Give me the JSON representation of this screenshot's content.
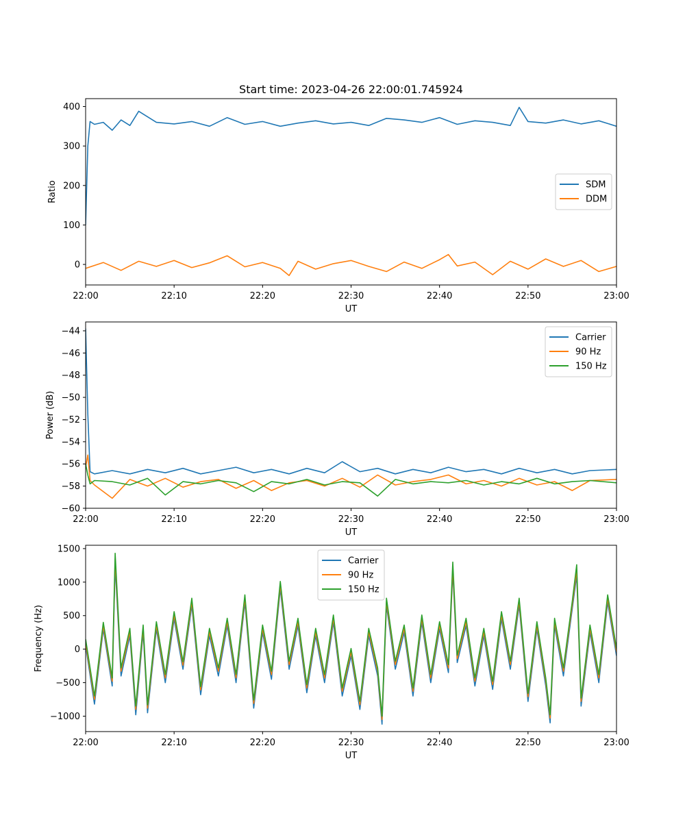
{
  "chart_data": [
    {
      "type": "line",
      "title": "Start time: 2023-04-26 22:00:01.745924",
      "xlabel": "UT",
      "ylabel": "Ratio",
      "xlim": [
        "22:00",
        "23:00"
      ],
      "ylim": [
        -52,
        420
      ],
      "xticks": [
        "22:00",
        "22:10",
        "22:20",
        "22:30",
        "22:40",
        "22:50",
        "23:00"
      ],
      "yticks": [
        0,
        100,
        200,
        300,
        400
      ],
      "grid": false,
      "legend_position": "center-right",
      "series": [
        {
          "name": "SDM",
          "color": "#1f77b4",
          "x": [
            "22:00",
            "22:00:15",
            "22:00:30",
            "22:01",
            "22:02",
            "22:03",
            "22:04",
            "22:05",
            "22:06",
            "22:08",
            "22:10",
            "22:12",
            "22:14",
            "22:16",
            "22:18",
            "22:20",
            "22:22",
            "22:24",
            "22:26",
            "22:28",
            "22:30",
            "22:32",
            "22:34",
            "22:36",
            "22:38",
            "22:40",
            "22:42",
            "22:44",
            "22:46",
            "22:48",
            "22:49",
            "22:50",
            "22:52",
            "22:54",
            "22:56",
            "22:58",
            "23:00"
          ],
          "values": [
            100,
            300,
            362,
            355,
            360,
            340,
            366,
            352,
            388,
            360,
            356,
            362,
            350,
            372,
            355,
            362,
            350,
            358,
            364,
            356,
            360,
            352,
            370,
            366,
            360,
            372,
            355,
            364,
            360,
            352,
            398,
            362,
            358,
            366,
            356,
            364,
            350
          ]
        },
        {
          "name": "DDM",
          "color": "#ff7f0e",
          "x": [
            "22:00",
            "22:02",
            "22:04",
            "22:06",
            "22:08",
            "22:10",
            "22:12",
            "22:14",
            "22:16",
            "22:18",
            "22:20",
            "22:22",
            "22:23",
            "22:24",
            "22:26",
            "22:28",
            "22:30",
            "22:32",
            "22:34",
            "22:36",
            "22:38",
            "22:40",
            "22:41",
            "22:42",
            "22:44",
            "22:46",
            "22:48",
            "22:50",
            "22:52",
            "22:54",
            "22:56",
            "22:58",
            "23:00"
          ],
          "values": [
            -10,
            5,
            -15,
            8,
            -5,
            10,
            -8,
            4,
            22,
            -6,
            5,
            -10,
            -28,
            8,
            -12,
            2,
            10,
            -5,
            -18,
            6,
            -10,
            12,
            25,
            -4,
            6,
            -26,
            8,
            -12,
            14,
            -5,
            10,
            -18,
            -5
          ]
        }
      ]
    },
    {
      "type": "line",
      "title": "",
      "xlabel": "UT",
      "ylabel": "Power (dB)",
      "xlim": [
        "22:00",
        "23:00"
      ],
      "ylim": [
        -60,
        -43.2
      ],
      "xticks": [
        "22:00",
        "22:10",
        "22:20",
        "22:30",
        "22:40",
        "22:50",
        "23:00"
      ],
      "yticks": [
        -60,
        -58,
        -56,
        -54,
        -52,
        -50,
        -48,
        -46,
        -44
      ],
      "grid": false,
      "legend_position": "top-right",
      "series": [
        {
          "name": "Carrier",
          "color": "#1f77b4",
          "x": [
            "22:00",
            "22:00:15",
            "22:00:30",
            "22:01",
            "22:03",
            "22:05",
            "22:07",
            "22:09",
            "22:11",
            "22:13",
            "22:15",
            "22:17",
            "22:19",
            "22:21",
            "22:23",
            "22:25",
            "22:27",
            "22:29",
            "22:31",
            "22:33",
            "22:35",
            "22:37",
            "22:39",
            "22:41",
            "22:43",
            "22:45",
            "22:47",
            "22:49",
            "22:51",
            "22:53",
            "22:55",
            "22:57",
            "23:00"
          ],
          "values": [
            -43.8,
            -51.5,
            -56.7,
            -56.9,
            -56.6,
            -56.9,
            -56.5,
            -56.8,
            -56.4,
            -56.9,
            -56.6,
            -56.3,
            -56.8,
            -56.5,
            -56.9,
            -56.4,
            -56.8,
            -55.8,
            -56.7,
            -56.4,
            -56.9,
            -56.5,
            -56.8,
            -56.3,
            -56.7,
            -56.5,
            -56.9,
            -56.4,
            -56.8,
            -56.5,
            -56.9,
            -56.6,
            -56.5
          ]
        },
        {
          "name": "90 Hz",
          "color": "#ff7f0e",
          "x": [
            "22:00",
            "22:00:15",
            "22:00:30",
            "22:01",
            "22:03",
            "22:05",
            "22:07",
            "22:09",
            "22:11",
            "22:13",
            "22:15",
            "22:17",
            "22:19",
            "22:21",
            "22:23",
            "22:25",
            "22:27",
            "22:29",
            "22:31",
            "22:33",
            "22:35",
            "22:37",
            "22:39",
            "22:41",
            "22:43",
            "22:45",
            "22:47",
            "22:49",
            "22:51",
            "22:53",
            "22:55",
            "22:57",
            "23:00"
          ],
          "values": [
            -56.3,
            -55.2,
            -57.5,
            -57.9,
            -59.1,
            -57.4,
            -58.0,
            -57.3,
            -58.1,
            -57.6,
            -57.4,
            -58.2,
            -57.5,
            -58.4,
            -57.7,
            -57.5,
            -58.0,
            -57.3,
            -58.1,
            -57.0,
            -57.9,
            -57.6,
            -57.4,
            -57.0,
            -57.8,
            -57.5,
            -58.0,
            -57.3,
            -57.9,
            -57.6,
            -58.4,
            -57.5,
            -57.4
          ]
        },
        {
          "name": "150 Hz",
          "color": "#2ca02c",
          "x": [
            "22:00",
            "22:00:15",
            "22:00:30",
            "22:01",
            "22:03",
            "22:05",
            "22:07",
            "22:09",
            "22:11",
            "22:13",
            "22:15",
            "22:17",
            "22:19",
            "22:21",
            "22:23",
            "22:25",
            "22:27",
            "22:29",
            "22:31",
            "22:33",
            "22:35",
            "22:37",
            "22:39",
            "22:41",
            "22:43",
            "22:45",
            "22:47",
            "22:49",
            "22:51",
            "22:53",
            "22:55",
            "22:57",
            "23:00"
          ],
          "values": [
            -56.0,
            -57.0,
            -57.8,
            -57.5,
            -57.6,
            -57.9,
            -57.3,
            -58.8,
            -57.6,
            -57.8,
            -57.5,
            -57.7,
            -58.5,
            -57.6,
            -57.8,
            -57.4,
            -57.9,
            -57.6,
            -57.7,
            -58.9,
            -57.4,
            -57.8,
            -57.6,
            -57.7,
            -57.5,
            -57.9,
            -57.6,
            -57.8,
            -57.3,
            -57.8,
            -57.6,
            -57.5,
            -57.7
          ]
        }
      ]
    },
    {
      "type": "line",
      "title": "",
      "xlabel": "UT",
      "ylabel": "Frequency (Hz)",
      "xlim": [
        "22:00",
        "23:00"
      ],
      "ylim": [
        -1230,
        1550
      ],
      "xticks": [
        "22:00",
        "22:10",
        "22:20",
        "22:30",
        "22:40",
        "22:50",
        "23:00"
      ],
      "yticks": [
        -1000,
        -500,
        0,
        500,
        1000,
        1500
      ],
      "grid": false,
      "legend_position": "top-center",
      "series": [
        {
          "name": "Carrier",
          "color": "#1f77b4",
          "x": [
            "22:00",
            "22:01",
            "22:02",
            "22:03",
            "22:03:20",
            "22:04",
            "22:05",
            "22:05:40",
            "22:06:30",
            "22:07",
            "22:08",
            "22:09",
            "22:10",
            "22:11",
            "22:12",
            "22:13",
            "22:14",
            "22:15",
            "22:16",
            "22:17",
            "22:18",
            "22:19",
            "22:20",
            "22:21",
            "22:22",
            "22:23",
            "22:24",
            "22:25",
            "22:26",
            "22:27",
            "22:28",
            "22:29",
            "22:30",
            "22:31",
            "22:32",
            "22:33",
            "22:33:30",
            "22:34",
            "22:35",
            "22:36",
            "22:37",
            "22:38",
            "22:39",
            "22:40",
            "22:41",
            "22:41:30",
            "22:42",
            "22:43",
            "22:44",
            "22:45",
            "22:46",
            "22:47",
            "22:48",
            "22:49",
            "22:50",
            "22:51",
            "22:52",
            "22:52:30",
            "22:53",
            "22:54",
            "22:55",
            "22:55:30",
            "22:56",
            "22:57",
            "22:58",
            "22:59",
            "23:00"
          ],
          "values": [
            50,
            -820,
            300,
            -550,
            1250,
            -400,
            200,
            -980,
            250,
            -950,
            300,
            -500,
            450,
            -300,
            650,
            -680,
            200,
            -400,
            350,
            -500,
            700,
            -880,
            250,
            -450,
            900,
            -300,
            350,
            -650,
            200,
            -500,
            400,
            -700,
            -100,
            -900,
            200,
            -400,
            -1120,
            650,
            -300,
            250,
            -700,
            400,
            -500,
            300,
            -350,
            1150,
            -200,
            350,
            -550,
            200,
            -600,
            450,
            -300,
            650,
            -780,
            300,
            -550,
            -1100,
            350,
            -400,
            600,
            1100,
            -850,
            250,
            -500,
            700,
            -100
          ]
        },
        {
          "name": "90 Hz",
          "color": "#ff7f0e",
          "x": [
            "22:00",
            "22:01",
            "22:02",
            "22:03",
            "22:03:20",
            "22:04",
            "22:05",
            "22:05:40",
            "22:06:30",
            "22:07",
            "22:08",
            "22:09",
            "22:10",
            "22:11",
            "22:12",
            "22:13",
            "22:14",
            "22:15",
            "22:16",
            "22:17",
            "22:18",
            "22:19",
            "22:20",
            "22:21",
            "22:22",
            "22:23",
            "22:24",
            "22:25",
            "22:26",
            "22:27",
            "22:28",
            "22:29",
            "22:30",
            "22:31",
            "22:32",
            "22:33",
            "22:33:30",
            "22:34",
            "22:35",
            "22:36",
            "22:37",
            "22:38",
            "22:39",
            "22:40",
            "22:41",
            "22:41:30",
            "22:42",
            "22:43",
            "22:44",
            "22:45",
            "22:46",
            "22:47",
            "22:48",
            "22:49",
            "22:50",
            "22:51",
            "22:52",
            "22:52:30",
            "22:53",
            "22:54",
            "22:55",
            "22:55:30",
            "22:56",
            "22:57",
            "22:58",
            "22:59",
            "23:00"
          ],
          "values": [
            100,
            -750,
            350,
            -480,
            1350,
            -330,
            260,
            -900,
            310,
            -880,
            360,
            -430,
            510,
            -240,
            710,
            -610,
            260,
            -330,
            410,
            -430,
            760,
            -810,
            310,
            -380,
            960,
            -230,
            410,
            -580,
            260,
            -430,
            460,
            -630,
            -40,
            -830,
            260,
            -330,
            -1050,
            710,
            -230,
            310,
            -630,
            460,
            -430,
            360,
            -280,
            1220,
            -140,
            410,
            -480,
            260,
            -530,
            510,
            -230,
            710,
            -710,
            360,
            -480,
            -1030,
            410,
            -330,
            660,
            1180,
            -780,
            310,
            -430,
            760,
            -40
          ]
        },
        {
          "name": "150 Hz",
          "color": "#2ca02c",
          "x": [
            "22:00",
            "22:01",
            "22:02",
            "22:03",
            "22:03:20",
            "22:04",
            "22:05",
            "22:05:40",
            "22:06:30",
            "22:07",
            "22:08",
            "22:09",
            "22:10",
            "22:11",
            "22:12",
            "22:13",
            "22:14",
            "22:15",
            "22:16",
            "22:17",
            "22:18",
            "22:19",
            "22:20",
            "22:21",
            "22:22",
            "22:23",
            "22:24",
            "22:25",
            "22:26",
            "22:27",
            "22:28",
            "22:29",
            "22:30",
            "22:31",
            "22:32",
            "22:33",
            "22:33:30",
            "22:34",
            "22:35",
            "22:36",
            "22:37",
            "22:38",
            "22:39",
            "22:40",
            "22:41",
            "22:41:30",
            "22:42",
            "22:43",
            "22:44",
            "22:45",
            "22:46",
            "22:47",
            "22:48",
            "22:49",
            "22:50",
            "22:51",
            "22:52",
            "22:52:30",
            "22:53",
            "22:54",
            "22:55",
            "22:55:30",
            "22:56",
            "22:57",
            "22:58",
            "22:59",
            "23:00"
          ],
          "values": [
            150,
            -700,
            400,
            -430,
            1430,
            -280,
            310,
            -850,
            360,
            -830,
            410,
            -380,
            560,
            -190,
            760,
            -560,
            310,
            -280,
            460,
            -380,
            810,
            -760,
            360,
            -330,
            1010,
            -180,
            460,
            -530,
            310,
            -380,
            510,
            -580,
            10,
            -780,
            310,
            -280,
            -1000,
            760,
            -180,
            360,
            -580,
            510,
            -380,
            410,
            -230,
            1300,
            -90,
            460,
            -430,
            310,
            -480,
            560,
            -180,
            760,
            -660,
            410,
            -430,
            -980,
            460,
            -280,
            710,
            1260,
            -730,
            360,
            -380,
            810,
            10
          ]
        }
      ]
    }
  ]
}
